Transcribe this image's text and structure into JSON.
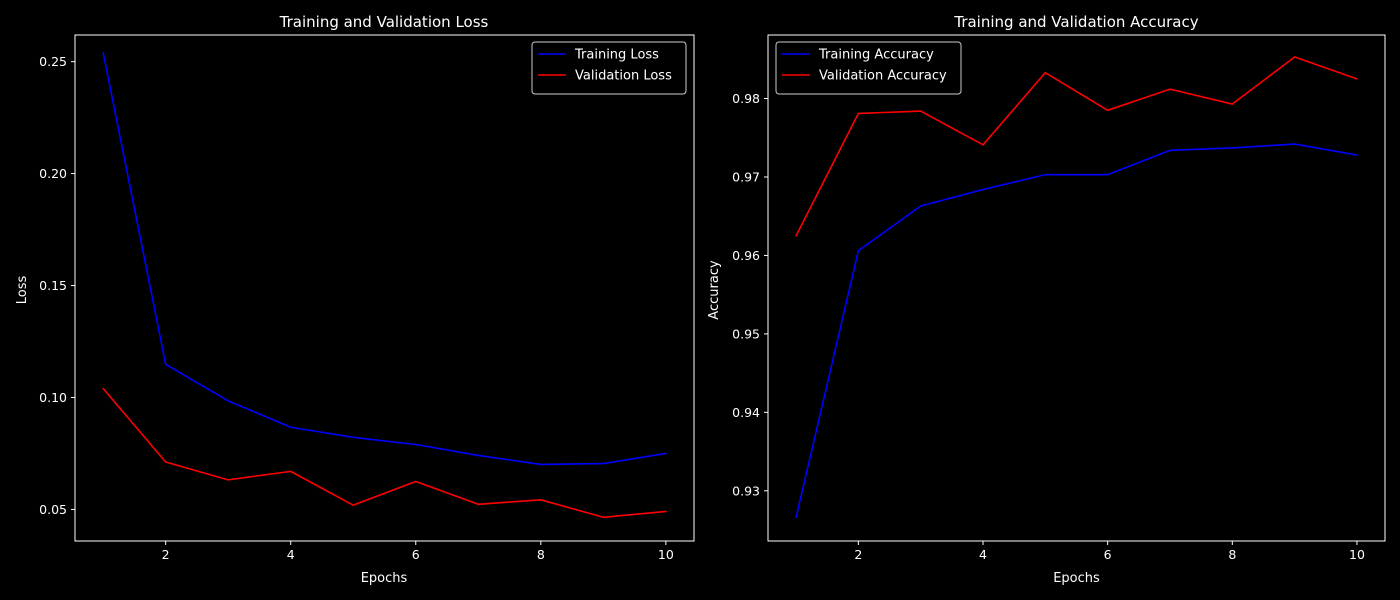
{
  "figure": {
    "background": "#000000",
    "foreground": "#ffffff"
  },
  "chart_data": [
    {
      "type": "line",
      "title": "Training and Validation Loss",
      "xlabel": "Epochs",
      "ylabel": "Loss",
      "x": [
        1,
        2,
        3,
        4,
        5,
        6,
        7,
        8,
        9,
        10
      ],
      "xlim": [
        0.55,
        10.45
      ],
      "ylim": [
        0.0359,
        0.2619
      ],
      "xticks": [
        2,
        4,
        6,
        8,
        10
      ],
      "xtick_labels": [
        "2",
        "4",
        "6",
        "8",
        "10"
      ],
      "yticks": [
        0.05,
        0.1,
        0.15,
        0.2,
        0.25
      ],
      "ytick_labels": [
        "0.05",
        "0.10",
        "0.15",
        "0.20",
        "0.25"
      ],
      "grid": false,
      "legend_position": "upper right",
      "series": [
        {
          "name": "Training Loss",
          "color": "#0000ff",
          "values": [
            0.254,
            0.1148,
            0.0985,
            0.0867,
            0.0822,
            0.079,
            0.0741,
            0.0701,
            0.0705,
            0.075
          ]
        },
        {
          "name": "Validation Loss",
          "color": "#ff0000",
          "values": [
            0.104,
            0.0712,
            0.0632,
            0.067,
            0.0519,
            0.0625,
            0.0523,
            0.0543,
            0.0465,
            0.0491
          ]
        }
      ]
    },
    {
      "type": "line",
      "title": "Training and Validation Accuracy",
      "xlabel": "Epochs",
      "ylabel": "Accuracy",
      "x": [
        1,
        2,
        3,
        4,
        5,
        6,
        7,
        8,
        9,
        10
      ],
      "xlim": [
        0.55,
        10.45
      ],
      "ylim": [
        0.9236,
        0.9881
      ],
      "xticks": [
        2,
        4,
        6,
        8,
        10
      ],
      "xtick_labels": [
        "2",
        "4",
        "6",
        "8",
        "10"
      ],
      "yticks": [
        0.93,
        0.94,
        0.95,
        0.96,
        0.97,
        0.98
      ],
      "ytick_labels": [
        "0.93",
        "0.94",
        "0.95",
        "0.96",
        "0.97",
        "0.98"
      ],
      "grid": false,
      "legend_position": "upper left",
      "series": [
        {
          "name": "Training Accuracy",
          "color": "#0000ff",
          "values": [
            0.9266,
            0.9606,
            0.9663,
            0.9684,
            0.9703,
            0.9703,
            0.9734,
            0.9737,
            0.9742,
            0.9728
          ]
        },
        {
          "name": "Validation Accuracy",
          "color": "#ff0000",
          "values": [
            0.9625,
            0.9781,
            0.9784,
            0.9741,
            0.9833,
            0.9785,
            0.9812,
            0.9793,
            0.9853,
            0.9825
          ]
        }
      ]
    }
  ]
}
